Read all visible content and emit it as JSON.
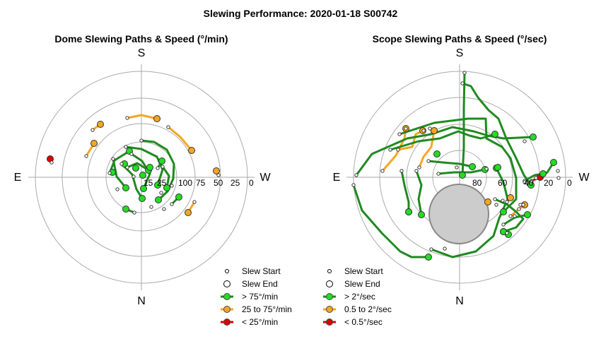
{
  "page_title": "Slewing Performance: 2020-01-18 S00742",
  "colors": {
    "fast": "#1f8a1f",
    "fast_marker": "#22dd22",
    "medium": "#f5a623",
    "slow": "#dd0000",
    "ring": "#aaaaaa",
    "obstruction": "#cccccc"
  },
  "chart_data": [
    {
      "type": "polar-path",
      "title": "Dome Slewing Paths & Speed (°/min)",
      "compass": {
        "top": "S",
        "bottom": "N",
        "left": "E",
        "right": "W"
      },
      "radial_ticks": [
        "15",
        "25",
        "100",
        "75",
        "50",
        "25",
        "0"
      ],
      "legend": [
        "Slew Start",
        "Slew End",
        "> 75°/min",
        "25 to 75°/min",
        "< 25°/min"
      ],
      "paths": [
        {
          "speed": "slow",
          "points": [
            [
              73,
              230
            ],
            [
              71,
              225
            ]
          ]
        },
        {
          "speed": "medium",
          "points": [
            [
              131,
              184
            ],
            [
              142,
              176
            ]
          ]
        },
        {
          "speed": "medium",
          "points": [
            [
              180,
              167
            ],
            [
              200,
              163
            ],
            [
              222,
              168
            ]
          ]
        },
        {
          "speed": "medium",
          "points": [
            [
              238,
              180
            ],
            [
              255,
              194
            ],
            [
              271,
              213
            ]
          ]
        },
        {
          "speed": "medium",
          "points": [
            [
              122,
              221
            ],
            [
              133,
              203
            ]
          ]
        },
        {
          "speed": "medium",
          "points": [
            [
              275,
              286
            ],
            [
              266,
              301
            ]
          ]
        },
        {
          "speed": "medium",
          "points": [
            [
              309,
              248
            ],
            [
              306,
              242
            ]
          ]
        },
        {
          "speed": "fast",
          "points": [
            [
              200,
              199
            ],
            [
              218,
              201
            ],
            [
              236,
              212
            ],
            [
              246,
              232
            ],
            [
              245,
              253
            ],
            [
              237,
              271
            ],
            [
              224,
              283
            ]
          ]
        },
        {
          "speed": "fast",
          "points": [
            [
              178,
              208
            ],
            [
              200,
              211
            ],
            [
              222,
              222
            ],
            [
              230,
              240
            ],
            [
              223,
              262
            ]
          ]
        },
        {
          "speed": "fast",
          "points": [
            [
              160,
              225
            ],
            [
              165,
              250
            ],
            [
              178,
              266
            ]
          ]
        },
        {
          "speed": "fast",
          "points": [
            [
              172,
              232
            ],
            [
              187,
              247
            ],
            [
              193,
              268
            ],
            [
              201,
              281
            ]
          ]
        },
        {
          "speed": "fast",
          "points": [
            [
              186,
              218
            ],
            [
              201,
              228
            ],
            [
              212,
              246
            ],
            [
              203,
              267
            ]
          ]
        },
        {
          "speed": "fast",
          "points": [
            [
              155,
              245
            ],
            [
              162,
              227
            ],
            [
              183,
              214
            ]
          ]
        },
        {
          "speed": "fast",
          "points": [
            [
              180,
              237
            ],
            [
              194,
              231
            ],
            [
              210,
              241
            ]
          ]
        },
        {
          "speed": "fast",
          "points": [
            [
              230,
              236
            ],
            [
              239,
              249
            ],
            [
              236,
              266
            ]
          ]
        },
        {
          "speed": "fast",
          "points": [
            [
              190,
              301
            ],
            [
              178,
              296
            ]
          ]
        },
        {
          "speed": "fast",
          "points": [
            [
              243,
              289
            ],
            [
              253,
              279
            ]
          ]
        },
        {
          "speed": "fast",
          "points": [
            [
              223,
              238
            ],
            [
              229,
              228
            ]
          ]
        }
      ],
      "extra_end_markers": [
        {
          "speed": "fast",
          "point": [
            176,
            232
          ]
        },
        {
          "speed": "fast",
          "point": [
            212,
            237
          ]
        },
        {
          "speed": "fast",
          "point": [
            192,
            238
          ]
        },
        {
          "speed": "fast",
          "point": [
            159,
            244
          ]
        },
        {
          "speed": "fast",
          "point": [
            202,
            248
          ]
        }
      ],
      "extra_start_markers": [
        [
          166,
          268
        ],
        [
          228,
          273
        ],
        [
          214,
          293
        ],
        [
          232,
          296
        ],
        [
          243,
          263
        ],
        [
          189,
          250
        ]
      ]
    },
    {
      "type": "polar-path",
      "title": "Scope Slewing Paths & Speed (°/sec)",
      "compass": {
        "top": "S",
        "bottom": "N",
        "left": "E",
        "right": "W"
      },
      "radial_ticks": [
        "80",
        "60",
        "40",
        "20",
        "0"
      ],
      "legend": [
        "Slew Start",
        "Slew End",
        "> 2°/sec",
        "0.5 to 2°/sec",
        "< 0.5°/sec"
      ],
      "obstruction": "grey disc (horizon obstruction)",
      "paths": [
        {
          "speed": "slow",
          "points": [
            [
              752,
              256
            ],
            [
              764,
              251
            ]
          ]
        },
        {
          "speed": "medium",
          "points": [
            [
              541,
              242
            ],
            [
              560,
              220
            ],
            [
              572,
              196
            ],
            [
              574,
              182
            ]
          ]
        },
        {
          "speed": "medium",
          "points": [
            [
              563,
              212
            ],
            [
              583,
              208
            ],
            [
              588,
              190
            ],
            [
              598,
              185
            ]
          ]
        },
        {
          "speed": "medium",
          "points": [
            [
              593,
              237
            ],
            [
              599,
              222
            ],
            [
              610,
              208
            ],
            [
              614,
              185
            ]
          ]
        },
        {
          "speed": "medium",
          "points": [
            [
              722,
              306
            ],
            [
              734,
              296
            ],
            [
              742,
              290
            ]
          ]
        },
        {
          "speed": "medium",
          "points": [
            [
              717,
              286
            ],
            [
              722,
              280
            ]
          ]
        },
        {
          "speed": "fast",
          "points": [
            [
              654,
              118
            ],
            [
              666,
              122
            ],
            [
              676,
              138
            ],
            [
              691,
              156
            ],
            [
              705,
              168
            ],
            [
              716,
              196
            ],
            [
              729,
              222
            ],
            [
              741,
              248
            ],
            [
              751,
              262
            ]
          ]
        },
        {
          "speed": "fast",
          "points": [
            [
              657,
              103
            ],
            [
              656,
              154
            ],
            [
              656,
              209
            ],
            [
              654,
              248
            ]
          ]
        },
        {
          "speed": "fast",
          "points": [
            [
              565,
              190
            ],
            [
              614,
              174
            ],
            [
              662,
              168
            ],
            [
              687,
              168
            ],
            [
              688,
              196
            ],
            [
              710,
              208
            ],
            [
              722,
              224
            ],
            [
              730,
              252
            ],
            [
              730,
              282
            ],
            [
              712,
              300
            ]
          ]
        },
        {
          "speed": "fast",
          "points": [
            [
              610,
              353
            ],
            [
              640,
              364
            ],
            [
              673,
              356
            ],
            [
              698,
              334
            ],
            [
              706,
              309
            ],
            [
              718,
              282
            ],
            [
              712,
              258
            ],
            [
              702,
              238
            ]
          ]
        },
        {
          "speed": "fast",
          "points": [
            [
              504,
              248
            ],
            [
              526,
              218
            ],
            [
              576,
              196
            ],
            [
              610,
              190
            ],
            [
              640,
              180
            ],
            [
              670,
              186
            ],
            [
              690,
              192
            ],
            [
              712,
              196
            ],
            [
              754,
              194
            ]
          ]
        },
        {
          "speed": "fast",
          "points": [
            [
              552,
              212
            ],
            [
              592,
              200
            ],
            [
              622,
              196
            ],
            [
              648,
              186
            ],
            [
              664,
              192
            ],
            [
              680,
              196
            ],
            [
              700,
              190
            ]
          ]
        },
        {
          "speed": "fast",
          "points": [
            [
              500,
              262
            ],
            [
              512,
              298
            ],
            [
              540,
              330
            ],
            [
              566,
              356
            ],
            [
              582,
              364
            ],
            [
              606,
              364
            ]
          ]
        },
        {
          "speed": "fast",
          "points": [
            [
              568,
              242
            ],
            [
              572,
              262
            ],
            [
              578,
              286
            ],
            [
              578,
              300
            ]
          ]
        },
        {
          "speed": "fast",
          "points": [
            [
              589,
              242
            ],
            [
              596,
              262
            ],
            [
              592,
              282
            ],
            [
              596,
              304
            ]
          ]
        },
        {
          "speed": "fast",
          "points": [
            [
              606,
              228
            ],
            [
              626,
              230
            ],
            [
              650,
              232
            ],
            [
              668,
              236
            ]
          ]
        },
        {
          "speed": "fast",
          "points": [
            [
              620,
              246
            ],
            [
              642,
              244
            ],
            [
              666,
              244
            ],
            [
              686,
              240
            ]
          ]
        },
        {
          "speed": "fast",
          "points": [
            [
              700,
              282
            ],
            [
              718,
              290
            ],
            [
              730,
              300
            ],
            [
              740,
              310
            ],
            [
              730,
              322
            ],
            [
              712,
              328
            ]
          ]
        },
        {
          "speed": "fast",
          "points": [
            [
              712,
              318
            ],
            [
              728,
              308
            ],
            [
              746,
              304
            ]
          ]
        },
        {
          "speed": "fast",
          "points": [
            [
              758,
              252
            ],
            [
              774,
              244
            ],
            [
              783,
              230
            ]
          ]
        },
        {
          "speed": "fast",
          "points": [
            [
              742,
              256
            ],
            [
              756,
              248
            ],
            [
              768,
              246
            ]
          ]
        }
      ],
      "extra_end_markers": [
        {
          "speed": "fast",
          "point": [
            704,
            237
          ]
        },
        {
          "speed": "fast",
          "point": [
            618,
            218
          ]
        },
        {
          "speed": "fast",
          "point": [
            578,
            300
          ]
        },
        {
          "speed": "fast",
          "point": [
            712,
            328
          ]
        },
        {
          "speed": "fast",
          "point": [
            719,
            332
          ]
        },
        {
          "speed": "medium",
          "point": [
            690,
            286
          ]
        }
      ],
      "extra_start_markers": [
        [
          574,
          182
        ],
        [
          599,
          185
        ],
        [
          608,
          182
        ],
        [
          789,
          242
        ],
        [
          790,
          252
        ],
        [
          736,
          290
        ],
        [
          734,
          296
        ],
        [
          740,
          290
        ],
        [
          742,
          200
        ],
        [
          717,
          330
        ],
        [
          629,
          352
        ],
        [
          711,
          284
        ],
        [
          646,
          237
        ],
        [
          742,
          258
        ],
        [
          702,
          290
        ],
        [
          728,
          306
        ],
        [
          688,
          239
        ]
      ]
    }
  ]
}
